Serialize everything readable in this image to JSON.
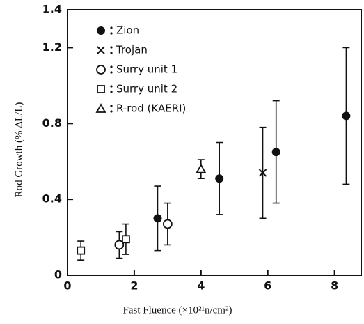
{
  "chart_data": {
    "type": "scatter",
    "x_label": "Fast Fluence (×10²¹n/cm²)",
    "y_label": "Rod Growth (% ΔL/L)",
    "xlim": [
      0,
      8.8
    ],
    "ylim": [
      0,
      1.4
    ],
    "xticks": [
      0,
      2,
      4,
      6,
      8
    ],
    "yticks": [
      0,
      0.4,
      0.8,
      1.2,
      1.4
    ],
    "color": "#111111",
    "series": [
      {
        "name": "Zion",
        "marker": "filled-circle",
        "x": [
          2.7,
          4.55,
          6.25,
          8.35
        ],
        "values": [
          0.3,
          0.51,
          0.65,
          0.84
        ],
        "errors": [
          0.17,
          0.19,
          0.27,
          0.36
        ]
      },
      {
        "name": "Trojan",
        "marker": "cross",
        "x": [
          5.85
        ],
        "values": [
          0.54
        ],
        "errors": [
          0.24
        ]
      },
      {
        "name": "Surry unit 1",
        "marker": "open-circle",
        "x": [
          1.55,
          3.0
        ],
        "values": [
          0.16,
          0.27
        ],
        "errors": [
          0.07,
          0.11
        ]
      },
      {
        "name": "Surry unit 2",
        "marker": "square",
        "x": [
          0.4,
          1.75
        ],
        "values": [
          0.13,
          0.19
        ],
        "errors": [
          0.05,
          0.08
        ]
      },
      {
        "name": "R-rod (KAERI)",
        "marker": "triangle",
        "x": [
          4.0
        ],
        "values": [
          0.56
        ],
        "errors": [
          0.05
        ]
      }
    ]
  }
}
